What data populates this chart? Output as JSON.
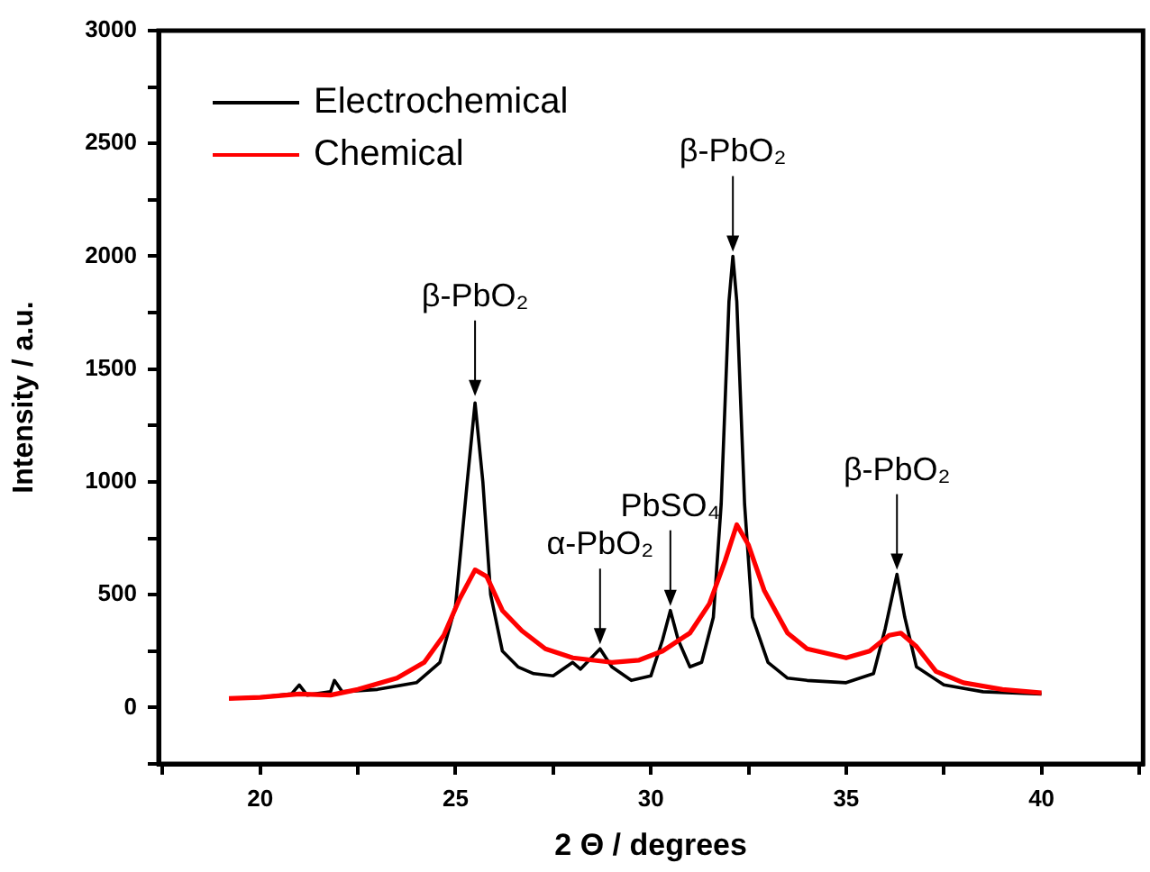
{
  "chart_data": {
    "type": "line",
    "xlabel": "2 Θ / degrees",
    "ylabel": "Intensity / a.u.",
    "xlim": [
      17.4,
      42.6
    ],
    "xticks": [
      {
        "value": 17.5,
        "label": null
      },
      20,
      {
        "value": 22.5,
        "label": null
      },
      25,
      {
        "value": 27.5,
        "label": null
      },
      30,
      {
        "value": 32.5,
        "label": null
      },
      35,
      {
        "value": 37.5,
        "label": null
      },
      40,
      {
        "value": 42.5,
        "label": null
      }
    ],
    "ylim": [
      -250,
      3000
    ],
    "yticks": [
      {
        "value": -250,
        "label": null
      },
      0,
      {
        "value": 250,
        "label": null
      },
      500,
      {
        "value": 750,
        "label": null
      },
      1000,
      {
        "value": 1250,
        "label": null
      },
      1500,
      {
        "value": 1750,
        "label": null
      },
      2000,
      {
        "value": 2250,
        "label": null
      },
      2500,
      {
        "value": 2750,
        "label": null
      },
      3000
    ],
    "grid": false,
    "legend": "top left",
    "marker": "none",
    "line_style": "solid",
    "series": [
      {
        "name": "Electrochemical",
        "color": "#000000",
        "x": [
          19.2,
          20,
          20.8,
          21,
          21.2,
          21.8,
          21.9,
          22.1,
          23,
          24,
          24.6,
          25,
          25.3,
          25.5,
          25.7,
          25.9,
          26.2,
          26.6,
          27,
          27.5,
          28,
          28.2,
          28.7,
          29,
          29.5,
          30,
          30.3,
          30.5,
          30.7,
          31,
          31.3,
          31.6,
          31.8,
          32,
          32.1,
          32.2,
          32.4,
          32.6,
          33,
          33.5,
          34,
          35,
          35.7,
          36,
          36.3,
          36.5,
          36.8,
          37.5,
          38.5,
          40
        ],
        "values": [
          40,
          45,
          60,
          100,
          55,
          70,
          120,
          70,
          80,
          110,
          200,
          450,
          1000,
          1350,
          1000,
          500,
          250,
          180,
          150,
          140,
          200,
          170,
          260,
          180,
          120,
          140,
          300,
          430,
          300,
          180,
          200,
          400,
          900,
          1800,
          2000,
          1800,
          900,
          400,
          200,
          130,
          120,
          110,
          150,
          350,
          590,
          400,
          180,
          100,
          70,
          60
        ]
      },
      {
        "name": "Chemical",
        "color": "#ff0000",
        "x": [
          19.2,
          20,
          21,
          21.8,
          22.5,
          23.5,
          24.2,
          24.7,
          25.1,
          25.5,
          25.8,
          26.2,
          26.7,
          27.3,
          28,
          29,
          29.7,
          30.3,
          31,
          31.5,
          31.9,
          32.2,
          32.5,
          32.9,
          33.5,
          34,
          35,
          35.6,
          36.1,
          36.4,
          36.8,
          37.3,
          38,
          39,
          40
        ],
        "values": [
          40,
          45,
          60,
          55,
          80,
          130,
          200,
          320,
          480,
          610,
          580,
          430,
          340,
          260,
          220,
          200,
          210,
          250,
          330,
          460,
          650,
          810,
          720,
          520,
          330,
          260,
          220,
          250,
          320,
          330,
          270,
          160,
          110,
          80,
          65
        ]
      }
    ],
    "annotations": [
      {
        "text": "β-PbO₂",
        "x": 25.5,
        "y": 1380
      },
      {
        "text": "α-PbO₂",
        "x": 28.7,
        "y": 280
      },
      {
        "text": "PbSO₄",
        "x": 30.5,
        "y": 450
      },
      {
        "text": "β-PbO₂",
        "x": 32.1,
        "y": 2020
      },
      {
        "text": "β-PbO₂",
        "x": 36.3,
        "y": 610
      }
    ]
  }
}
